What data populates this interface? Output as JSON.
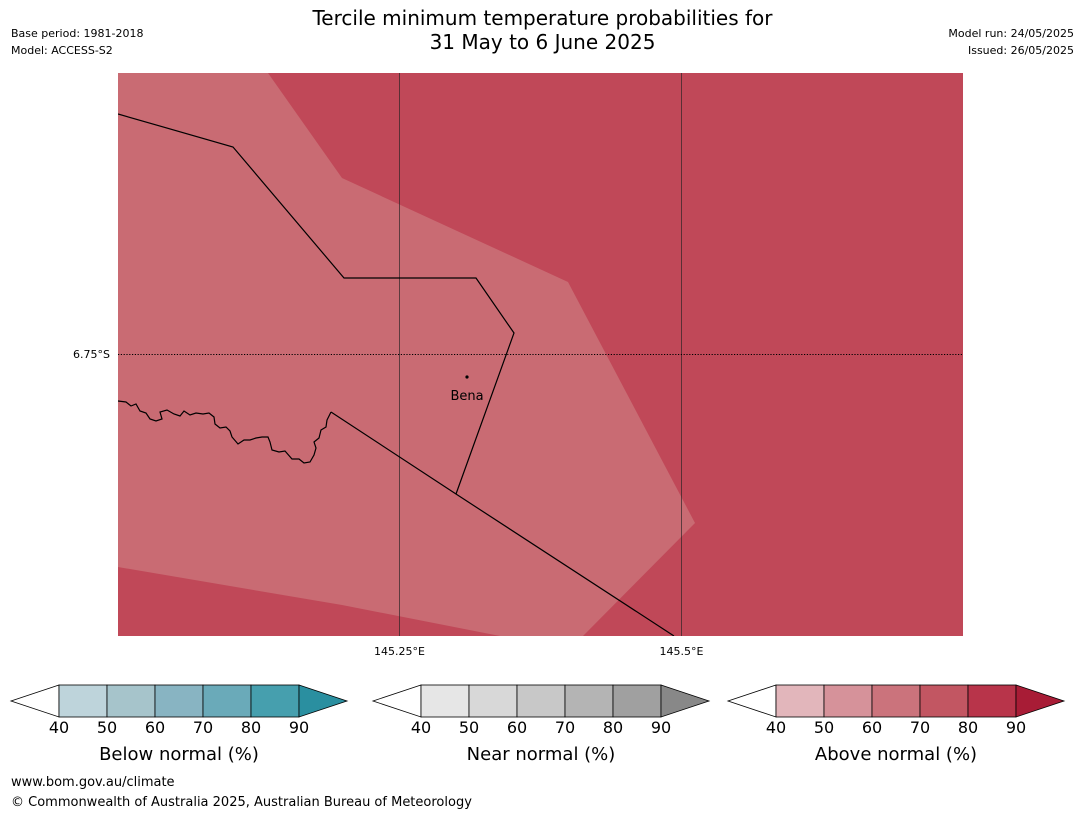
{
  "title": {
    "line1": "Tercile minimum temperature probabilities for",
    "line2": "31 May to 6 June 2025"
  },
  "meta": {
    "base_period": "Base period: 1981-2018",
    "model": "Model: ACCESS-S2",
    "model_run": "Model run: 24/05/2025",
    "issued": "Issued: 26/05/2025"
  },
  "map": {
    "place_label": "Bena",
    "lat_label": "6.75°S",
    "lon_labels": [
      "145.25°E",
      "145.5°E"
    ],
    "colors": {
      "light_region": "#c96b73",
      "dark_region": "#c04858"
    }
  },
  "colorbars": [
    {
      "label": "Below normal (%)",
      "ticks": [
        "40",
        "50",
        "60",
        "70",
        "80",
        "90"
      ],
      "colors": [
        "#bed4db",
        "#a6c4cb",
        "#88b4c2",
        "#6aaab9",
        "#469fae",
        "#2a8fa0"
      ]
    },
    {
      "label": "Near normal (%)",
      "ticks": [
        "40",
        "50",
        "60",
        "70",
        "80",
        "90"
      ],
      "colors": [
        "#e6e6e6",
        "#d8d8d8",
        "#c8c8c8",
        "#b4b4b4",
        "#a0a0a0",
        "#888888"
      ]
    },
    {
      "label": "Above normal (%)",
      "ticks": [
        "40",
        "50",
        "60",
        "70",
        "80",
        "90"
      ],
      "colors": [
        "#e2b6bb",
        "#d6929a",
        "#cb737c",
        "#c25662",
        "#b8344a",
        "#a81c36"
      ]
    }
  ],
  "footer": {
    "url": "www.bom.gov.au/climate",
    "copyright": "© Commonwealth of Australia 2025, Australian Bureau of Meteorology"
  }
}
